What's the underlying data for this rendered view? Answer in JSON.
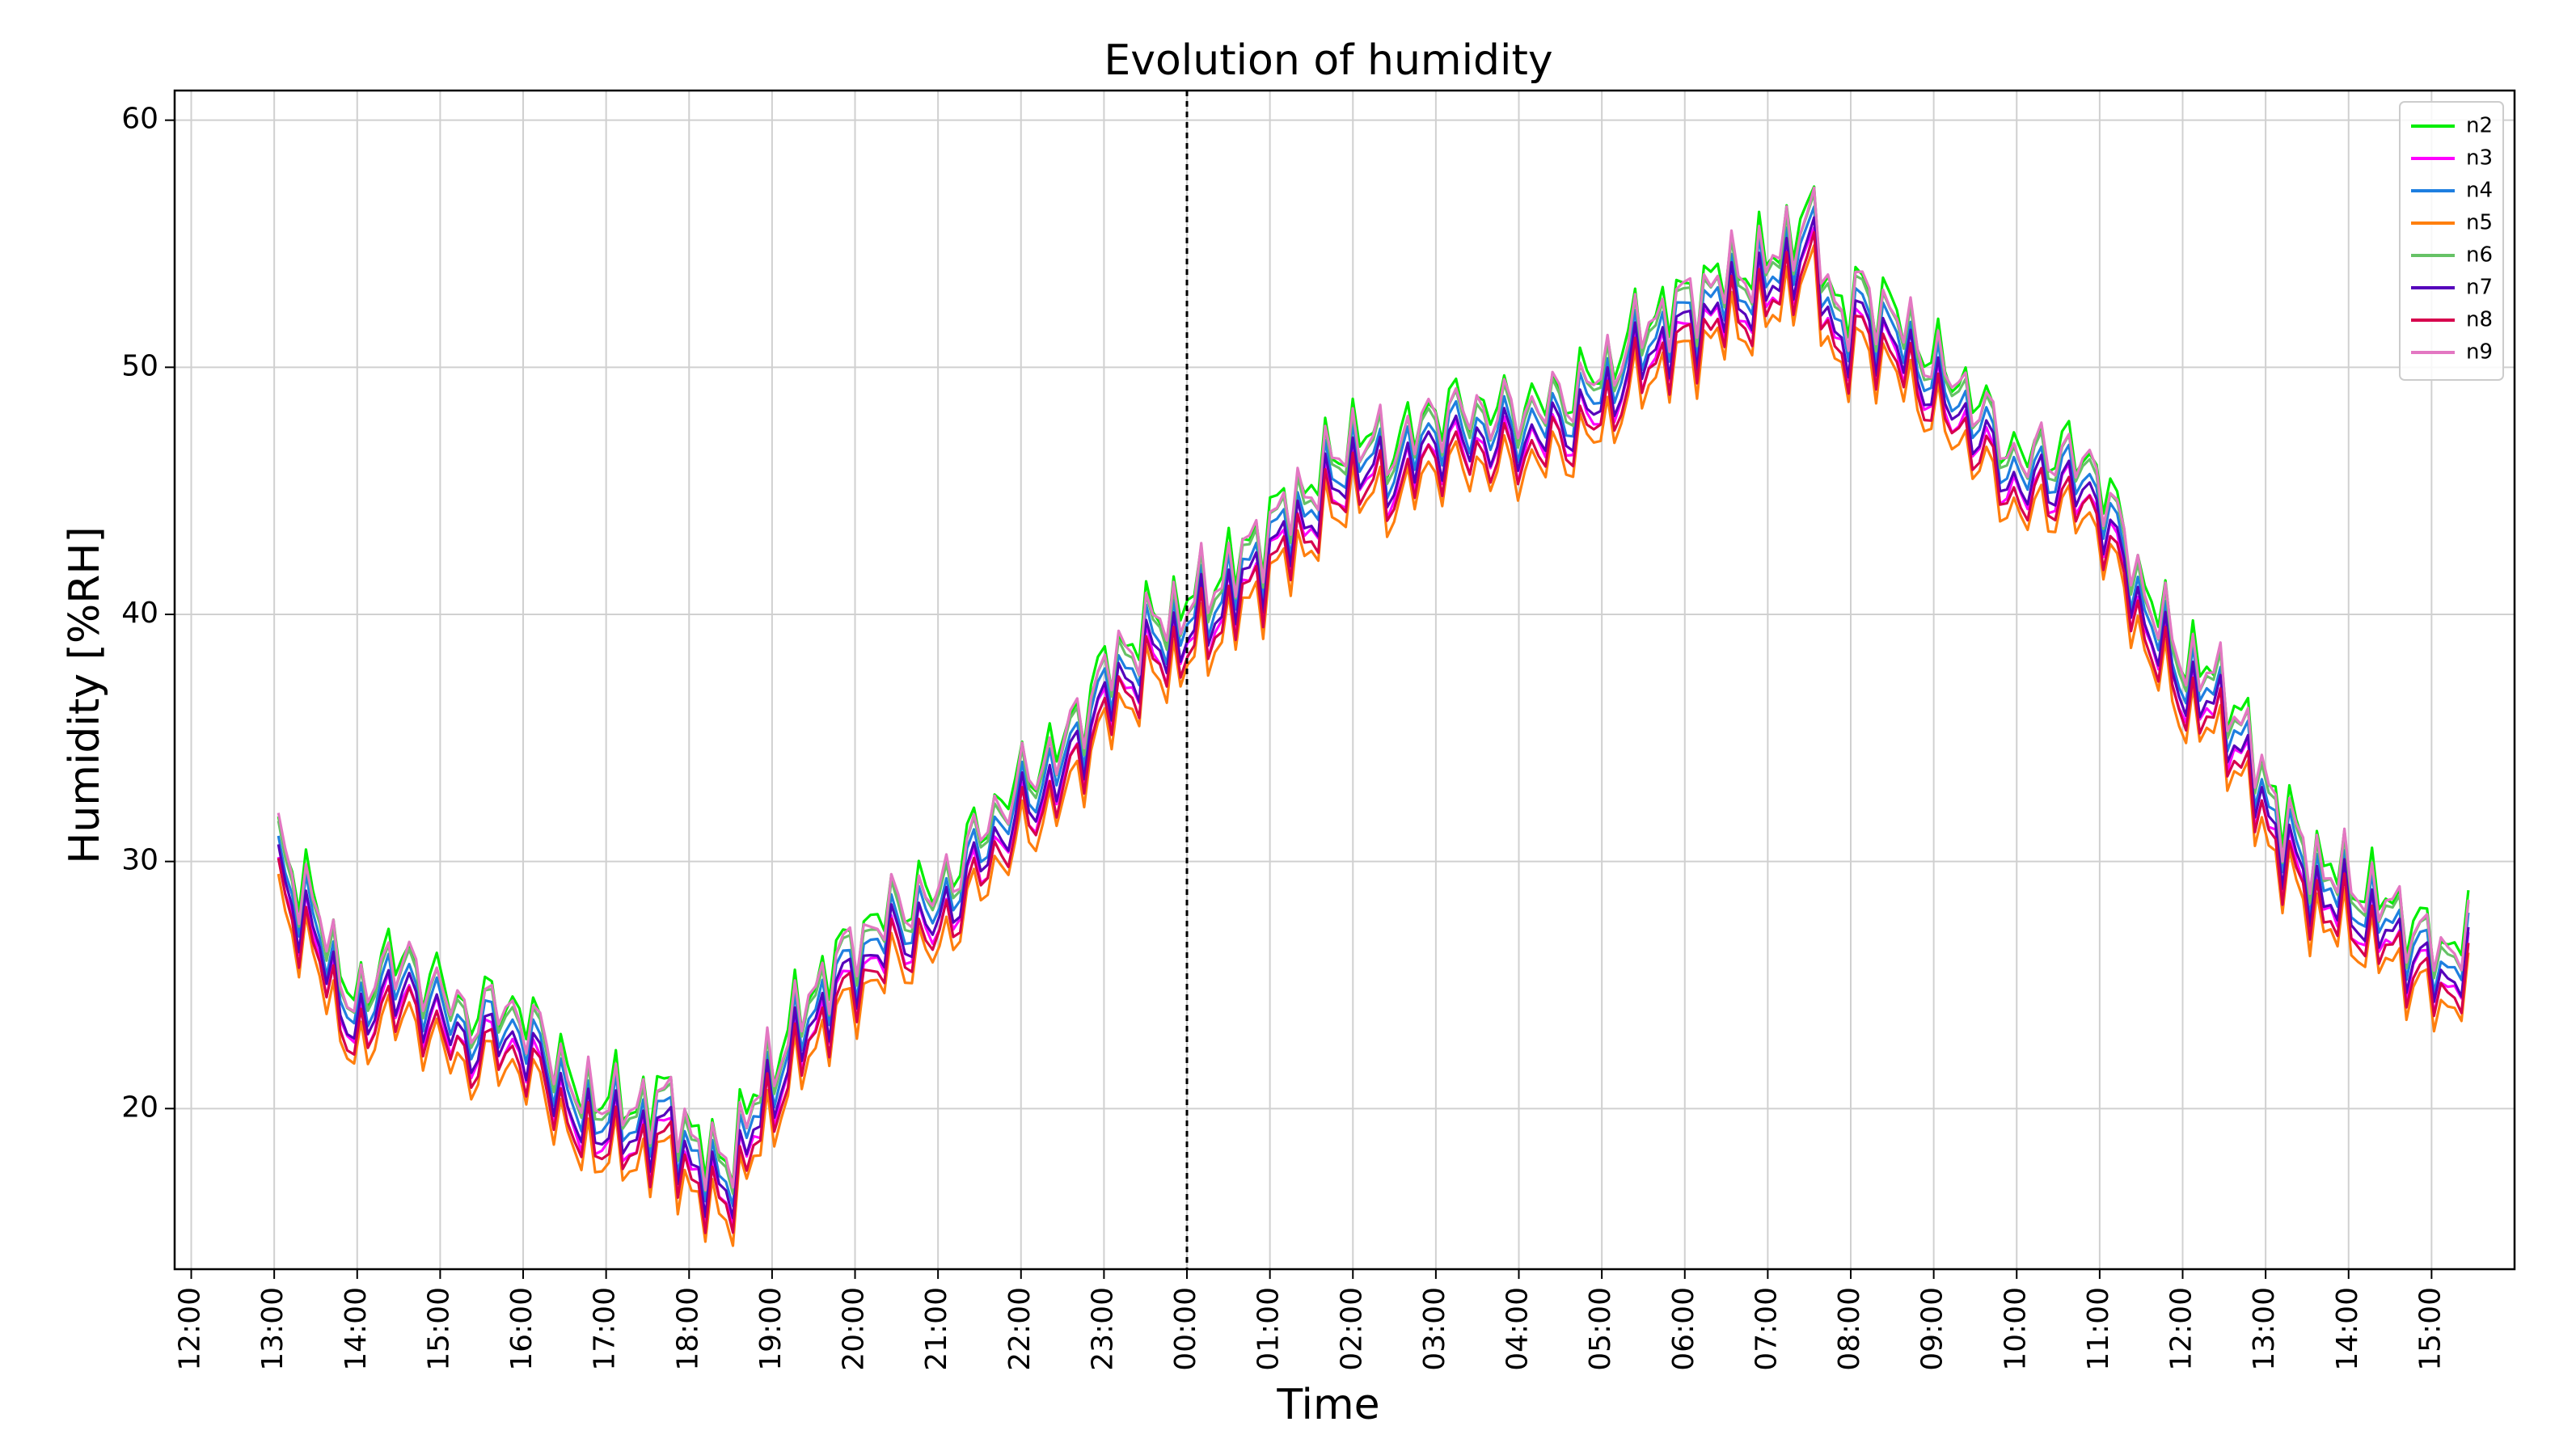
{
  "chart_data": {
    "type": "line",
    "title": "Evolution of humidity",
    "xlabel": "Time",
    "ylabel": "Humidity [%RH]",
    "x_ticks": [
      "12:00",
      "13:00",
      "14:00",
      "15:00",
      "16:00",
      "17:00",
      "18:00",
      "19:00",
      "20:00",
      "21:00",
      "22:00",
      "23:00",
      "00:00",
      "01:00",
      "02:00",
      "03:00",
      "04:00",
      "05:00",
      "06:00",
      "07:00",
      "08:00",
      "09:00",
      "10:00",
      "11:00",
      "12:00",
      "13:00",
      "14:00",
      "15:00"
    ],
    "xlim_hours": [
      -0.2,
      28.0
    ],
    "y_ticks": [
      20,
      30,
      40,
      50,
      60
    ],
    "ylim": [
      13.5,
      61.2
    ],
    "grid": true,
    "legend_position": "top-right",
    "midnight_marker_hour": 12,
    "base_profile": {
      "hours": [
        1.05,
        1.3,
        1.55,
        1.8,
        2.0,
        2.3,
        2.6,
        2.9,
        3.3,
        3.7,
        4.0,
        4.4,
        4.7,
        5.0,
        5.3,
        5.6,
        6.0,
        6.3,
        6.5,
        6.9,
        7.3,
        7.7,
        8.0,
        8.5,
        9.0,
        9.5,
        10.0,
        10.5,
        11.0,
        11.3,
        11.6,
        11.95,
        12.1,
        12.5,
        13.0,
        13.5,
        14.0,
        14.5,
        15.0,
        15.5,
        16.0,
        16.5,
        17.0,
        17.5,
        18.0,
        18.5,
        19.0,
        19.5,
        19.9,
        20.1,
        20.5,
        21.0,
        21.5,
        22.0,
        22.5,
        23.0,
        23.5,
        24.0,
        24.5,
        25.0,
        25.5,
        26.0,
        26.5,
        27.0,
        27.2,
        27.5
      ],
      "values": [
        29.5,
        28.0,
        26.5,
        24.5,
        22.5,
        25.0,
        24.5,
        24.0,
        22.5,
        23.0,
        22.5,
        21.0,
        19.0,
        19.5,
        18.5,
        19.5,
        18.0,
        16.5,
        17.0,
        20.0,
        22.5,
        24.5,
        25.5,
        27.0,
        27.5,
        30.0,
        32.0,
        33.5,
        36.5,
        37.5,
        38.5,
        39.0,
        39.5,
        40.5,
        42.5,
        44.0,
        46.0,
        45.5,
        47.0,
        47.0,
        47.0,
        47.5,
        48.5,
        50.5,
        51.5,
        52.5,
        53.0,
        55.0,
        50.5,
        52.0,
        51.0,
        49.0,
        47.5,
        45.0,
        45.5,
        44.5,
        40.0,
        37.0,
        36.0,
        32.0,
        29.0,
        28.0,
        27.0,
        25.5,
        25.0,
        26.5
      ]
    },
    "series": [
      {
        "name": "n2",
        "color": "#00ee00",
        "offset": 1.4
      },
      {
        "name": "n3",
        "color": "#ff00ff",
        "offset": -0.3
      },
      {
        "name": "n4",
        "color": "#1e7fe0",
        "offset": 0.5
      },
      {
        "name": "n5",
        "color": "#ff7f0e",
        "offset": -1.1
      },
      {
        "name": "n6",
        "color": "#66c266",
        "offset": 1.0
      },
      {
        "name": "n7",
        "color": "#5500bb",
        "offset": 0.0
      },
      {
        "name": "n8",
        "color": "#d6004d",
        "offset": -0.6
      },
      {
        "name": "n9",
        "color": "#e377c2",
        "offset": 1.2
      }
    ]
  }
}
